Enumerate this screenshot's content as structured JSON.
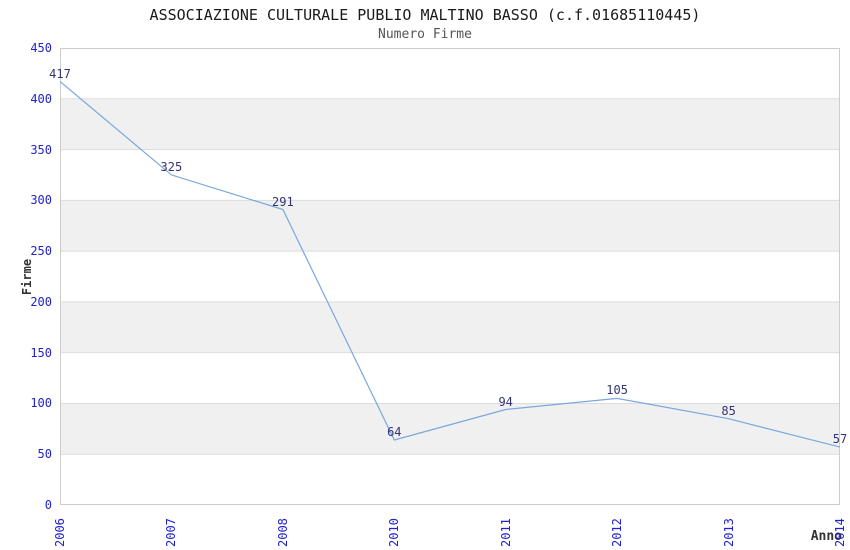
{
  "chart_data": {
    "type": "line",
    "title": "ASSOCIAZIONE CULTURALE PUBLIO MALTINO BASSO (c.f.01685110445)",
    "subtitle": "Numero Firme",
    "xlabel": "Anno",
    "ylabel": "Firme",
    "categories": [
      "2006",
      "2007",
      "2008",
      "2010",
      "2011",
      "2012",
      "2013",
      "2014"
    ],
    "values": [
      417,
      325,
      291,
      64,
      94,
      105,
      85,
      57
    ],
    "ylim": [
      0,
      450
    ],
    "yticks": [
      0,
      50,
      100,
      150,
      200,
      250,
      300,
      350,
      400,
      450
    ],
    "grid": true,
    "legend": "none",
    "bands": "alternating-horizontal",
    "markers": "none",
    "colors": {
      "title": "#1a1a1a",
      "subtitle": "#555555",
      "axis_label": "#333333",
      "tick_label": "#2222cc",
      "data_label": "#333377",
      "line": "#7aa7dd",
      "band": "#f0f0f0",
      "grid": "#dddddd",
      "border": "#cccccc",
      "background": "#ffffff"
    }
  }
}
